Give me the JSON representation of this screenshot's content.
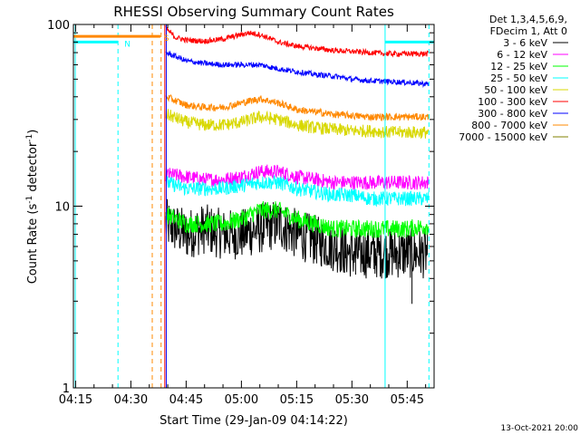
{
  "chart_data": {
    "type": "line",
    "title": "RHESSI Observing Summary Count Rates",
    "xlabel": "Start Time (29-Jan-09 04:14:22)",
    "ylabel": "Count Rate (s",
    "ylabel_sup": "-1",
    "ylabel_tail": " detector",
    "ylabel_tail_sup": "-1",
    "ylabel_close": ")",
    "x_range_minutes": [
      254.4,
      352.3
    ],
    "y_range": [
      1,
      100
    ],
    "y_scale": "log",
    "x_ticks": [
      {
        "label": "04:15",
        "min": 255
      },
      {
        "label": "04:30",
        "min": 270
      },
      {
        "label": "04:45",
        "min": 285
      },
      {
        "label": "05:00",
        "min": 300
      },
      {
        "label": "05:15",
        "min": 315
      },
      {
        "label": "05:30",
        "min": 330
      },
      {
        "label": "05:45",
        "min": 345
      }
    ],
    "y_ticks": [
      {
        "label": "1",
        "value": 1
      },
      {
        "label": "10",
        "value": 10
      },
      {
        "label": "100",
        "value": 100
      }
    ],
    "legend_title": [
      "Det 1,3,4,5,6,9,",
      "FDecim 1, Att 0"
    ],
    "legend_placement": "right",
    "series": [
      {
        "name": "3 - 6 keV",
        "color": "#000000",
        "start_min": 279.5,
        "end_min": 350.8,
        "points": [
          [
            279.5,
            8
          ],
          [
            285,
            7
          ],
          [
            290,
            7.5
          ],
          [
            295,
            7
          ],
          [
            300,
            7
          ],
          [
            305,
            7.5
          ],
          [
            310,
            8
          ],
          [
            315,
            7
          ],
          [
            320,
            6.5
          ],
          [
            325,
            6
          ],
          [
            330,
            5.5
          ],
          [
            335,
            5.5
          ],
          [
            340,
            5.5
          ],
          [
            345,
            5.5
          ],
          [
            350.8,
            5.5
          ]
        ],
        "noise": 0.14
      },
      {
        "name": "6 - 12 keV",
        "color": "#ff00ff",
        "start_min": 279.5,
        "end_min": 350.8,
        "points": [
          [
            279.5,
            15
          ],
          [
            285,
            14.5
          ],
          [
            290,
            14
          ],
          [
            295,
            14
          ],
          [
            300,
            14.5
          ],
          [
            305,
            15.5
          ],
          [
            310,
            15.5
          ],
          [
            315,
            14.5
          ],
          [
            320,
            14
          ],
          [
            325,
            13.5
          ],
          [
            330,
            13.5
          ],
          [
            335,
            13.5
          ],
          [
            340,
            13.5
          ],
          [
            345,
            13.5
          ],
          [
            350.8,
            13.5
          ]
        ],
        "noise": 0.04
      },
      {
        "name": "12 - 25 keV",
        "color": "#00ff00",
        "start_min": 279.5,
        "end_min": 350.8,
        "points": [
          [
            279.5,
            9
          ],
          [
            285,
            8
          ],
          [
            290,
            8
          ],
          [
            295,
            8
          ],
          [
            300,
            8.5
          ],
          [
            305,
            9.5
          ],
          [
            310,
            9.5
          ],
          [
            315,
            8.5
          ],
          [
            320,
            8
          ],
          [
            325,
            7.5
          ],
          [
            330,
            7.5
          ],
          [
            335,
            7.5
          ],
          [
            340,
            7.5
          ],
          [
            345,
            7.5
          ],
          [
            350.8,
            7.8
          ]
        ],
        "noise": 0.05
      },
      {
        "name": "25 - 50 keV",
        "color": "#00ffff",
        "start_min": 279.5,
        "end_min": 350.8,
        "points": [
          [
            279.5,
            13.5
          ],
          [
            285,
            12.5
          ],
          [
            290,
            12.5
          ],
          [
            295,
            12.5
          ],
          [
            300,
            13
          ],
          [
            305,
            13.5
          ],
          [
            310,
            13.5
          ],
          [
            315,
            12.5
          ],
          [
            320,
            12
          ],
          [
            325,
            11.5
          ],
          [
            330,
            11.5
          ],
          [
            335,
            11
          ],
          [
            340,
            11
          ],
          [
            345,
            11
          ],
          [
            350.8,
            11
          ]
        ],
        "noise": 0.04
      },
      {
        "name": "50 - 100 keV",
        "color": "#d8d800",
        "start_min": 279.5,
        "end_min": 350.8,
        "points": [
          [
            279.5,
            32
          ],
          [
            285,
            29
          ],
          [
            290,
            28
          ],
          [
            295,
            28
          ],
          [
            300,
            29
          ],
          [
            305,
            31
          ],
          [
            310,
            30
          ],
          [
            315,
            28
          ],
          [
            320,
            27
          ],
          [
            325,
            26.5
          ],
          [
            330,
            26
          ],
          [
            335,
            26
          ],
          [
            340,
            25.5
          ],
          [
            345,
            25.5
          ],
          [
            350.8,
            25.5
          ]
        ],
        "noise": 0.035
      },
      {
        "name": "100 - 300 keV",
        "color": "#ff0000",
        "start_min": 279.5,
        "end_min": 350.8,
        "points": [
          [
            279.5,
            95
          ],
          [
            282,
            85
          ],
          [
            285,
            82
          ],
          [
            290,
            81
          ],
          [
            295,
            83
          ],
          [
            298,
            86
          ],
          [
            302,
            90
          ],
          [
            305,
            88
          ],
          [
            310,
            80
          ],
          [
            315,
            76
          ],
          [
            320,
            74
          ],
          [
            325,
            72
          ],
          [
            330,
            71
          ],
          [
            335,
            70
          ],
          [
            340,
            69
          ],
          [
            345,
            69
          ],
          [
            350.8,
            69
          ]
        ],
        "noise": 0.015
      },
      {
        "name": "300 - 800 keV",
        "color": "#0000ff",
        "start_min": 279.5,
        "end_min": 350.8,
        "points": [
          [
            279.5,
            70
          ],
          [
            285,
            63
          ],
          [
            290,
            61
          ],
          [
            295,
            60
          ],
          [
            300,
            60
          ],
          [
            305,
            60
          ],
          [
            310,
            57
          ],
          [
            315,
            55
          ],
          [
            320,
            53
          ],
          [
            325,
            52
          ],
          [
            330,
            50
          ],
          [
            335,
            49
          ],
          [
            340,
            48.5
          ],
          [
            345,
            48
          ],
          [
            350.8,
            47
          ]
        ],
        "noise": 0.015
      },
      {
        "name": "800 - 7000 keV",
        "color": "#ff8800",
        "start_min": 279.5,
        "end_min": 350.8,
        "points": [
          [
            279.5,
            40
          ],
          [
            285,
            36
          ],
          [
            290,
            35
          ],
          [
            295,
            35
          ],
          [
            300,
            37
          ],
          [
            305,
            39
          ],
          [
            310,
            37
          ],
          [
            315,
            34
          ],
          [
            320,
            33
          ],
          [
            325,
            32
          ],
          [
            330,
            31.5
          ],
          [
            335,
            31
          ],
          [
            340,
            31
          ],
          [
            345,
            31
          ],
          [
            350.8,
            31
          ]
        ],
        "noise": 0.02
      },
      {
        "name": "7000 - 15000 keV",
        "color": "#808000",
        "start_min": 279.5,
        "end_min": 350.8,
        "points": [],
        "noise": 0
      }
    ],
    "flags": {
      "night_level_lines": [
        {
          "color": "#ff8800",
          "from_min": 254.4,
          "to_min": 278.0,
          "value": 86,
          "label": "S",
          "label_at_min": 278.2
        },
        {
          "color": "#00ffff",
          "from_min": 254.4,
          "to_min": 266.5,
          "value": 80,
          "label": "N",
          "label_at_min": 267.5
        },
        {
          "color": "#00ffff",
          "from_min": 339.0,
          "to_min": 352.3,
          "value": 80,
          "label": "",
          "label_at_min": 0
        }
      ],
      "vertical_markers": [
        {
          "color": "#00ffff",
          "min": 254.9,
          "style": "solid"
        },
        {
          "color": "#00ffff",
          "min": 266.5,
          "style": "dashed"
        },
        {
          "color": "#ff8800",
          "min": 275.8,
          "style": "dashed"
        },
        {
          "color": "#ff8800",
          "min": 278.2,
          "style": "dashed"
        },
        {
          "color": "#ff0000",
          "min": 279.2,
          "style": "solid"
        },
        {
          "color": "#0000ff",
          "min": 279.6,
          "style": "solid"
        },
        {
          "color": "#00ffff",
          "min": 339.0,
          "style": "solid"
        },
        {
          "color": "#00ffff",
          "min": 350.9,
          "style": "dashed"
        }
      ],
      "dropouts": [
        {
          "min": 328.0,
          "value": 4.3
        },
        {
          "min": 331.0,
          "value": 4.2
        },
        {
          "min": 336.0,
          "value": 4.5
        },
        {
          "min": 340.0,
          "value": 4.3
        },
        {
          "min": 346.3,
          "value": 2.9
        }
      ]
    },
    "timestamp": "13-Oct-2021 20:00"
  }
}
